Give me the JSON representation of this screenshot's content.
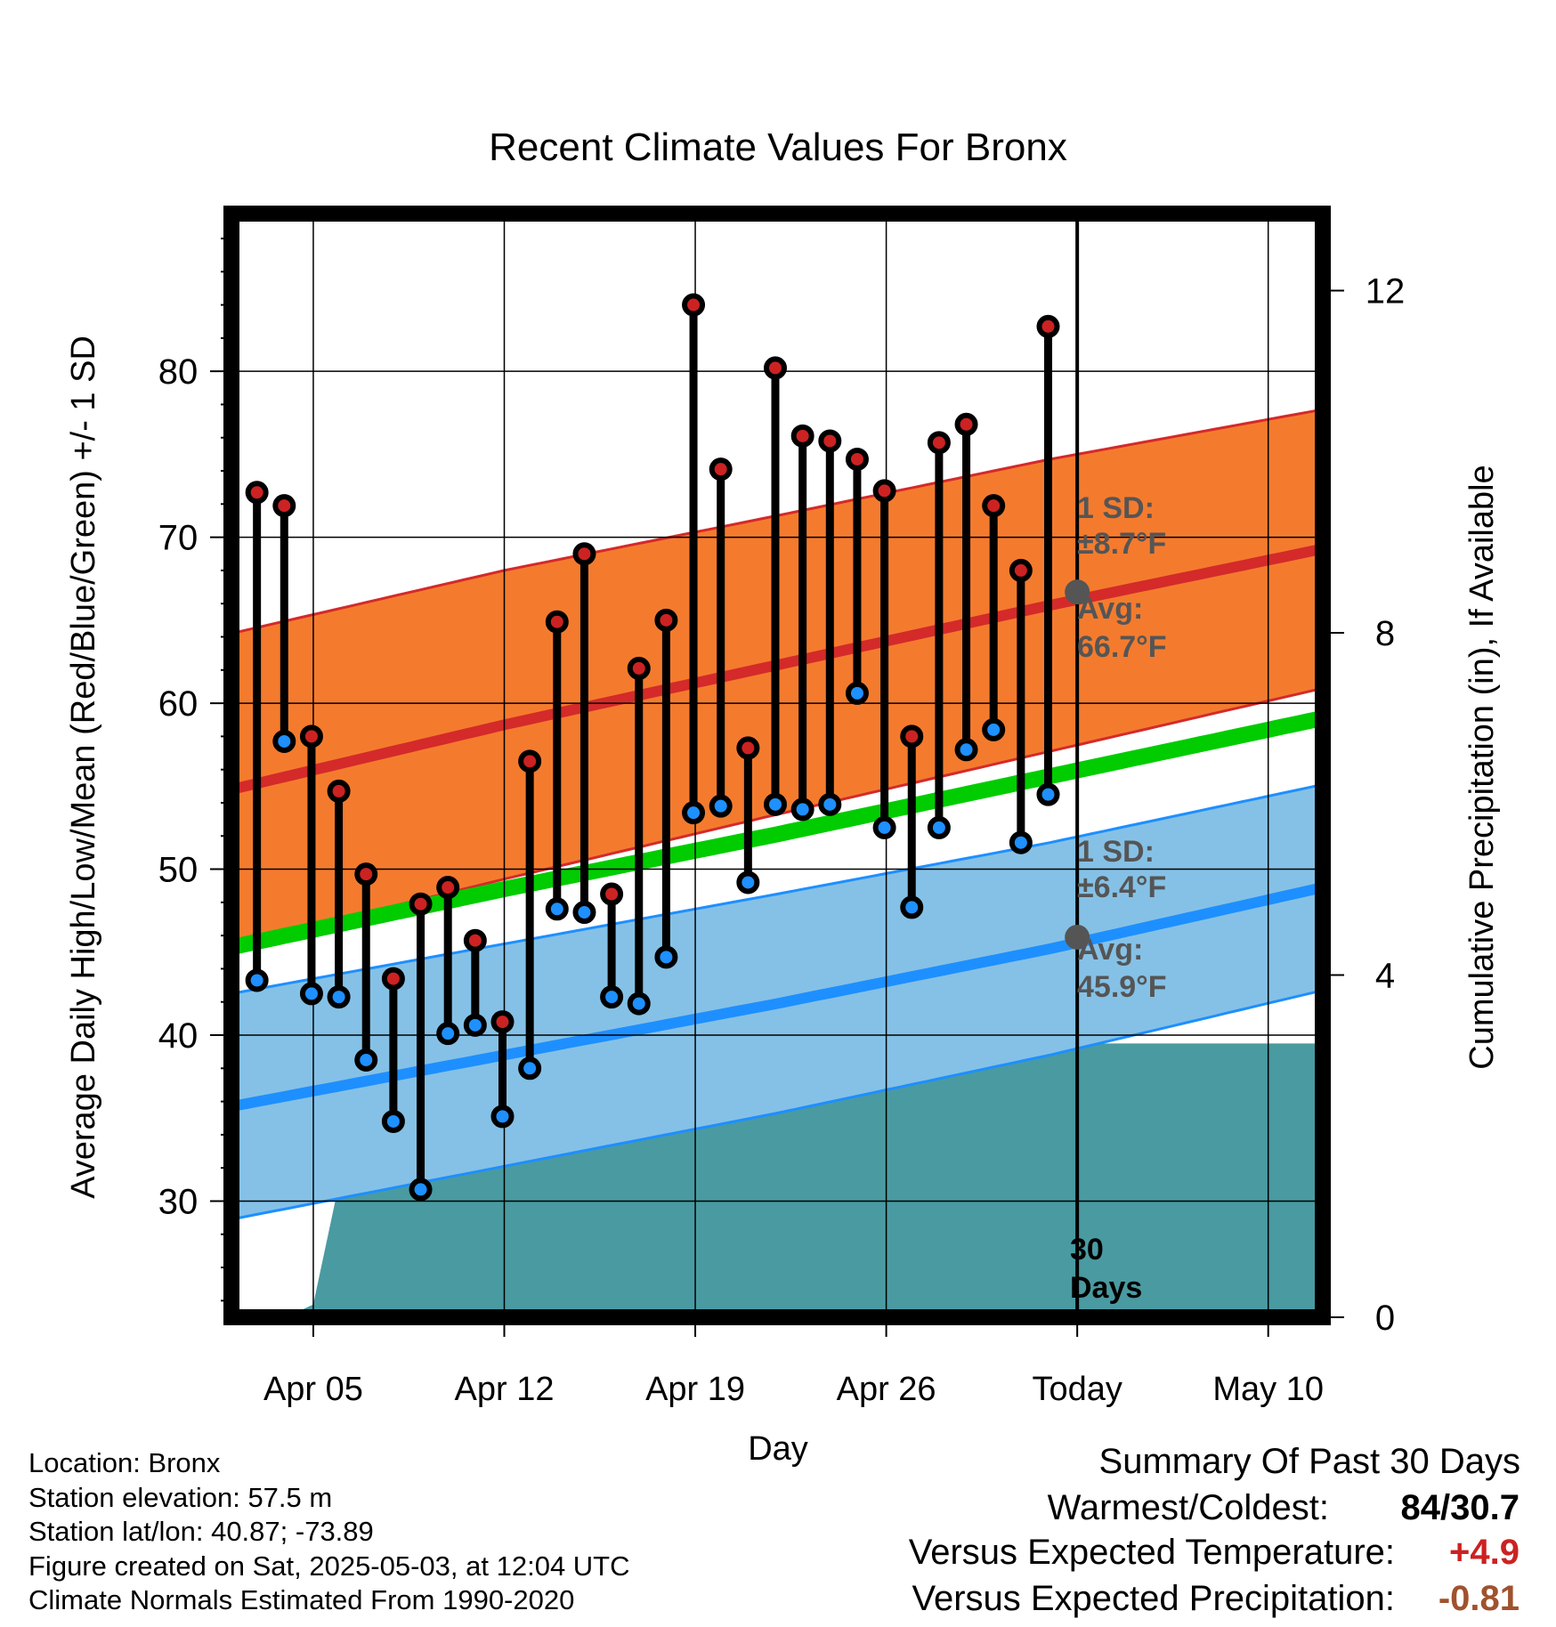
{
  "title": "Recent Climate Values For Bronx",
  "xlabel": "Day",
  "ylabel_left": "Average Daily High/Low/Mean (Red/Blue/Green) +/- 1 SD",
  "ylabel_right": "Cumulative Precipitation (in), If Available",
  "annotations": {
    "high_sd_label": "1 SD:",
    "high_sd_value": "±8.7°F",
    "high_avg_label": "Avg:",
    "high_avg_value": "66.7°F",
    "low_sd_label": "1 SD:",
    "low_sd_value": "±6.4°F",
    "low_avg_label": "Avg:",
    "low_avg_value": "45.9°F",
    "window_number": "30",
    "window_unit": "Days"
  },
  "footer": {
    "location": "Location: Bronx",
    "elevation": "Station elevation: 57.5 m",
    "latlon": "Station lat/lon: 40.87; -73.89",
    "created": "Figure created on Sat, 2025-05-03, at 12:04 UTC",
    "normals": "Climate Normals Estimated From 1990-2020"
  },
  "summary": {
    "title": "Summary Of Past 30 Days",
    "warm_cold_label": "Warmest/Coldest:",
    "warm_cold_value": "84/30.7",
    "temp_label": "Versus Expected Temperature:",
    "temp_value": "+4.9",
    "precip_label": "Versus Expected Precipitation:",
    "precip_value": "-0.81"
  },
  "colors": {
    "high_band": "#f47b2e",
    "high_mean": "#d42a2a",
    "low_band": "#85c1e6",
    "low_mean": "#1e8fff",
    "mean_line": "#00cc00",
    "precip": "#4a9aa1",
    "obs_high": "#cc2222",
    "obs_low": "#1e90ff",
    "temp_value": "#cc2222",
    "precip_value": "#a0522d",
    "annotation": "#555555"
  },
  "chart_data": {
    "type": "line",
    "x_axis": {
      "unit": "day",
      "tick_labels": [
        "Apr 05",
        "Apr 12",
        "Apr 19",
        "Apr 26",
        "Today",
        "May 10"
      ],
      "xlim": [
        "2025-04-02",
        "2025-05-12"
      ]
    },
    "y_axis": {
      "ylim": [
        23.0,
        89.5
      ],
      "ticks": [
        30,
        40,
        50,
        60,
        70,
        80
      ],
      "minor_step": 2
    },
    "y2_axis": {
      "ylim": [
        0,
        12.9
      ],
      "ticks": [
        0,
        4,
        8,
        12
      ]
    },
    "today": "2025-05-03",
    "normals": {
      "dates": [
        "2025-04-02",
        "2025-04-12",
        "2025-04-22",
        "2025-05-02",
        "2025-05-12"
      ],
      "high_mean": [
        54.8,
        58.7,
        62.3,
        65.9,
        69.3
      ],
      "high_sd": [
        9.4,
        9.3,
        9.0,
        8.8,
        8.4
      ],
      "low_mean": [
        35.7,
        38.8,
        41.9,
        45.2,
        48.9
      ],
      "low_sd": [
        6.8,
        6.7,
        6.6,
        6.4,
        6.2
      ],
      "mean": [
        45.3,
        48.8,
        52.1,
        55.6,
        59.1
      ]
    },
    "series": [
      {
        "name": "High",
        "dates": [
          "2025-04-03",
          "2025-04-04",
          "2025-04-05",
          "2025-04-06",
          "2025-04-07",
          "2025-04-08",
          "2025-04-09",
          "2025-04-10",
          "2025-04-11",
          "2025-04-12",
          "2025-04-13",
          "2025-04-14",
          "2025-04-15",
          "2025-04-16",
          "2025-04-17",
          "2025-04-18",
          "2025-04-19",
          "2025-04-20",
          "2025-04-21",
          "2025-04-22",
          "2025-04-23",
          "2025-04-24",
          "2025-04-25",
          "2025-04-26",
          "2025-04-27",
          "2025-04-28",
          "2025-04-29",
          "2025-04-30",
          "2025-05-01",
          "2025-05-02"
        ],
        "values": [
          72.7,
          71.9,
          58.0,
          54.7,
          49.7,
          43.4,
          47.9,
          48.9,
          45.7,
          40.8,
          56.5,
          64.9,
          69.0,
          48.5,
          62.1,
          65.0,
          84.0,
          74.1,
          57.3,
          80.2,
          76.1,
          75.8,
          74.7,
          72.8,
          58.0,
          75.7,
          76.8,
          71.9,
          68.0,
          82.7
        ]
      },
      {
        "name": "Low",
        "dates": [
          "2025-04-03",
          "2025-04-04",
          "2025-04-05",
          "2025-04-06",
          "2025-04-07",
          "2025-04-08",
          "2025-04-09",
          "2025-04-10",
          "2025-04-11",
          "2025-04-12",
          "2025-04-13",
          "2025-04-14",
          "2025-04-15",
          "2025-04-16",
          "2025-04-17",
          "2025-04-18",
          "2025-04-19",
          "2025-04-20",
          "2025-04-21",
          "2025-04-22",
          "2025-04-23",
          "2025-04-24",
          "2025-04-25",
          "2025-04-26",
          "2025-04-27",
          "2025-04-28",
          "2025-04-29",
          "2025-04-30",
          "2025-05-01",
          "2025-05-02"
        ],
        "values": [
          43.3,
          57.7,
          42.5,
          42.3,
          38.5,
          34.8,
          30.7,
          40.1,
          40.6,
          35.1,
          38.0,
          47.6,
          47.4,
          42.3,
          41.9,
          44.7,
          53.4,
          53.8,
          49.2,
          53.9,
          53.6,
          53.9,
          60.6,
          52.5,
          47.7,
          52.5,
          57.2,
          58.4,
          51.6,
          54.5
        ]
      },
      {
        "name": "Precipitation",
        "dates": [
          "2025-04-02",
          "2025-04-03",
          "2025-04-04",
          "2025-04-05",
          "2025-04-06",
          "2025-04-07",
          "2025-04-08",
          "2025-04-09",
          "2025-04-10",
          "2025-04-11",
          "2025-04-12",
          "2025-04-25",
          "2025-04-26",
          "2025-05-12"
        ],
        "values": [
          0.0,
          0.0,
          0.0,
          0.15,
          1.65,
          1.8,
          1.8,
          1.8,
          1.8,
          2.2,
          2.8,
          2.85,
          3.2,
          3.2
        ]
      }
    ]
  }
}
